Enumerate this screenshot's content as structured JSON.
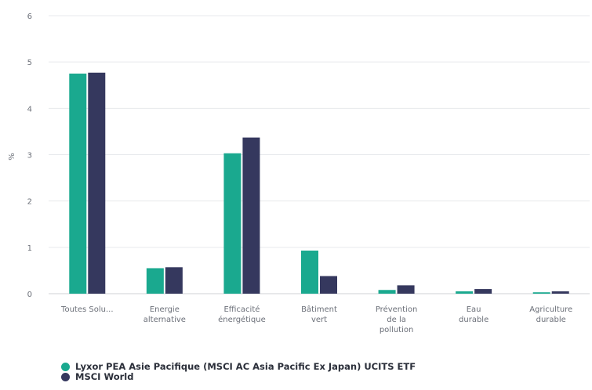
{
  "chart_data": {
    "type": "bar",
    "categories": [
      [
        "Toutes Solu..."
      ],
      [
        "Energie",
        "alternative"
      ],
      [
        "Efficacité",
        "énergétique"
      ],
      [
        "Bâtiment",
        "vert"
      ],
      [
        "Prévention",
        "de la",
        "pollution"
      ],
      [
        "Eau",
        "durable"
      ],
      [
        "Agriculture",
        "durable"
      ]
    ],
    "series": [
      {
        "name": "Lyxor PEA Asie Pacifique (MSCI AC Asia Pacific Ex Japan) UCITS ETF",
        "color": "#1aa98f",
        "values": [
          4.75,
          0.55,
          3.03,
          0.93,
          0.08,
          0.05,
          0.03
        ]
      },
      {
        "name": "MSCI World",
        "color": "#35385e",
        "values": [
          4.77,
          0.57,
          3.37,
          0.38,
          0.18,
          0.1,
          0.05
        ]
      }
    ],
    "ylabel": "%",
    "ylim": [
      0,
      6
    ],
    "yticks": [
      0,
      1,
      2,
      3,
      4,
      5,
      6
    ],
    "grid": true,
    "legend_position": "bottom-left"
  }
}
